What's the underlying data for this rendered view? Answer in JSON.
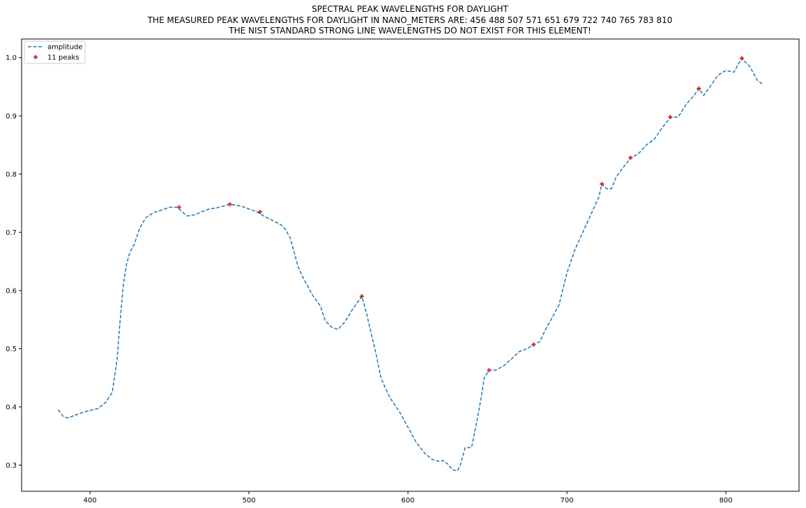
{
  "chart_data": {
    "type": "line",
    "title_lines": [
      "SPECTRAL PEAK WAVELENGTHS FOR DAYLIGHT",
      "THE MEASURED PEAK WAVELENGTHS FOR DAYLIGHT IN NANO_METERS ARE: 456 488 507 571 651 679 722 740 765 783 810",
      "THE NIST STANDARD STRONG LINE WAVELENGTHS DO NOT EXIST FOR THIS ELEMENT!"
    ],
    "xlabel": "",
    "ylabel": "",
    "xlim": [
      357,
      846
    ],
    "ylim": [
      0.255,
      1.032
    ],
    "x_ticks": [
      400,
      500,
      600,
      700,
      800
    ],
    "y_ticks": [
      0.3,
      0.4,
      0.5,
      0.6,
      0.7,
      0.8,
      0.9,
      1.0
    ],
    "y_tick_labels": [
      "0.3",
      "0.4",
      "0.5",
      "0.6",
      "0.7",
      "0.8",
      "0.9",
      "1.0"
    ],
    "grid": false,
    "legend_position": "top-left",
    "legend": [
      {
        "label": "amplitude",
        "style": "dashed-line",
        "color": "#1f77b4"
      },
      {
        "label": "11 peaks",
        "style": "plus-marker",
        "color": "#d62728"
      }
    ],
    "series": [
      {
        "name": "amplitude",
        "color": "#1f77b4",
        "line_style": "dashed",
        "x": [
          380,
          383,
          386,
          390,
          395,
          400,
          405,
          410,
          414,
          417,
          419,
          421,
          423,
          425,
          428,
          431,
          435,
          438,
          441,
          445,
          450,
          455,
          458,
          461,
          466,
          470,
          475,
          480,
          488,
          495,
          500,
          505,
          510,
          515,
          520,
          523,
          526,
          529,
          531,
          535,
          540,
          545,
          548,
          552,
          556,
          560,
          565,
          571,
          574,
          577,
          580,
          583,
          587,
          590,
          595,
          600,
          605,
          610,
          615,
          620,
          622,
          625,
          628,
          631,
          633,
          636,
          640,
          643,
          646,
          648,
          651,
          655,
          660,
          665,
          670,
          675,
          679,
          683,
          686,
          690,
          695,
          700,
          705,
          710,
          715,
          720,
          722,
          725,
          728,
          731,
          735,
          740,
          745,
          750,
          755,
          760,
          765,
          770,
          775,
          780,
          783,
          786,
          790,
          795,
          800,
          805,
          810,
          815,
          820,
          823
        ],
        "y": [
          0.395,
          0.384,
          0.381,
          0.385,
          0.39,
          0.394,
          0.397,
          0.408,
          0.425,
          0.48,
          0.55,
          0.61,
          0.645,
          0.665,
          0.68,
          0.705,
          0.725,
          0.73,
          0.735,
          0.738,
          0.743,
          0.743,
          0.735,
          0.728,
          0.73,
          0.735,
          0.74,
          0.742,
          0.748,
          0.745,
          0.74,
          0.735,
          0.727,
          0.72,
          0.713,
          0.705,
          0.69,
          0.66,
          0.64,
          0.617,
          0.592,
          0.573,
          0.548,
          0.537,
          0.533,
          0.545,
          0.567,
          0.59,
          0.56,
          0.525,
          0.49,
          0.45,
          0.425,
          0.41,
          0.39,
          0.365,
          0.34,
          0.322,
          0.31,
          0.306,
          0.308,
          0.302,
          0.292,
          0.29,
          0.3,
          0.33,
          0.33,
          0.37,
          0.415,
          0.45,
          0.463,
          0.463,
          0.47,
          0.482,
          0.495,
          0.5,
          0.507,
          0.512,
          0.53,
          0.55,
          0.575,
          0.63,
          0.67,
          0.7,
          0.73,
          0.76,
          0.783,
          0.775,
          0.775,
          0.795,
          0.81,
          0.827,
          0.835,
          0.85,
          0.86,
          0.88,
          0.897,
          0.898,
          0.92,
          0.935,
          0.947,
          0.935,
          0.95,
          0.97,
          0.978,
          0.975,
          0.999,
          0.985,
          0.96,
          0.955
        ]
      }
    ],
    "peaks": {
      "name": "11 peaks",
      "color": "#d62728",
      "marker": "+",
      "x": [
        456,
        488,
        507,
        571,
        651,
        679,
        722,
        740,
        765,
        783,
        810
      ],
      "y": [
        0.743,
        0.748,
        0.735,
        0.59,
        0.463,
        0.507,
        0.783,
        0.828,
        0.898,
        0.947,
        0.999
      ]
    }
  }
}
